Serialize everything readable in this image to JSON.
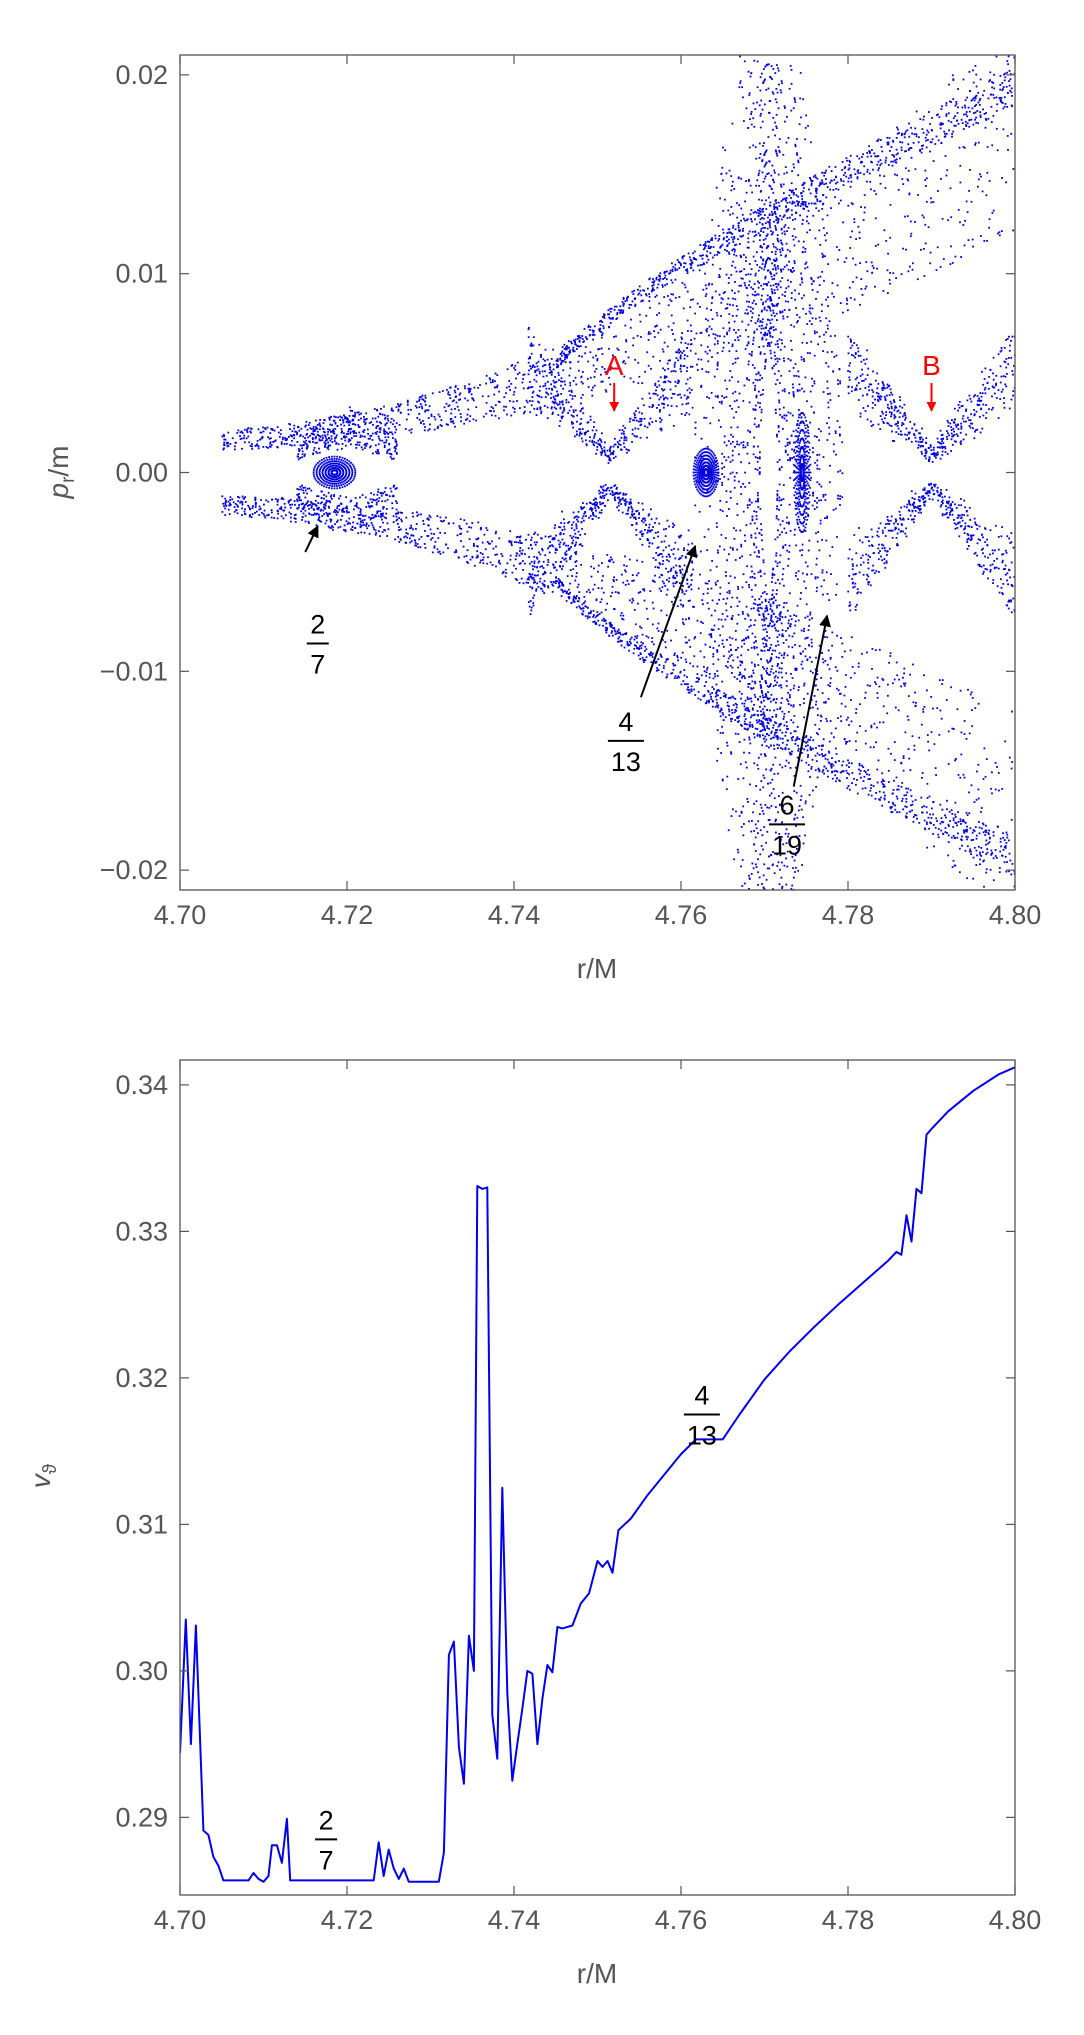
{
  "chart_data": [
    {
      "type": "scatter",
      "title": "",
      "xlabel": "r/M",
      "ylabel": {
        "main": "p",
        "sub": "r",
        "tail": "/m"
      },
      "xlim": [
        4.7,
        4.8
      ],
      "ylim": [
        -0.021,
        0.021
      ],
      "x_ticks": [
        "4.70",
        "4.72",
        "4.74",
        "4.76",
        "4.78",
        "4.80"
      ],
      "y_ticks": [
        "0.02",
        "0.01",
        "0.00",
        "−0.01",
        "−0.02"
      ],
      "grid": false,
      "point_color": "#0000dd",
      "regions": [
        {
          "label": "2/7 island",
          "center": [
            4.7185,
            0.0
          ],
          "half_width": [
            0.0025,
            0.0008
          ]
        },
        {
          "label": "4/13 island",
          "center": [
            4.763,
            0.0
          ],
          "half_width": [
            0.0015,
            0.0012
          ]
        },
        {
          "label": "6/19 island",
          "center": [
            4.7745,
            0.0
          ],
          "half_width": [
            0.001,
            0.003
          ]
        },
        {
          "label": "hyperbolic point A",
          "center": [
            4.7515,
            0.0
          ]
        },
        {
          "label": "hyperbolic point B",
          "center": [
            4.79,
            0.0
          ]
        }
      ],
      "annotations": [
        {
          "kind": "fraction",
          "num": "2",
          "den": "7",
          "text_at": [
            4.7165,
            -0.0086
          ],
          "arrow_from": [
            4.715,
            -0.004
          ],
          "arrow_to": [
            4.7165,
            -0.0027
          ]
        },
        {
          "kind": "fraction",
          "num": "4",
          "den": "13",
          "text_at": [
            4.7534,
            -0.0135
          ],
          "arrow_from": [
            4.7552,
            -0.0113
          ],
          "arrow_to": [
            4.7617,
            -0.0037
          ]
        },
        {
          "kind": "fraction",
          "num": "6",
          "den": "19",
          "text_at": [
            4.7727,
            -0.0177
          ],
          "arrow_from": [
            4.7735,
            -0.0158
          ],
          "arrow_to": [
            4.7775,
            -0.0072
          ]
        },
        {
          "kind": "marker",
          "text": "A",
          "arrow_from": [
            4.752,
            0.0045
          ],
          "arrow_to": [
            4.752,
            0.0031
          ]
        },
        {
          "kind": "marker",
          "text": "B",
          "arrow_from": [
            4.79,
            0.0045
          ],
          "arrow_to": [
            4.79,
            0.0031
          ]
        }
      ],
      "annotation_colors": {
        "fraction": "#000000",
        "marker": "#ff0000"
      }
    },
    {
      "type": "line",
      "title": "",
      "xlabel": "r/M",
      "ylabel": {
        "main": "v",
        "sub": "ϑ",
        "tail": ""
      },
      "xlim": [
        4.7,
        4.8
      ],
      "ylim": [
        0.2847,
        0.3417
      ],
      "x_ticks": [
        "4.70",
        "4.72",
        "4.74",
        "4.76",
        "4.78",
        "4.80"
      ],
      "y_ticks": [
        "0.34",
        "0.33",
        "0.32",
        "0.31",
        "0.30",
        "0.29"
      ],
      "grid": false,
      "series": [
        {
          "color": "#0000ee",
          "points": [
            [
              4.7,
              0.2944
            ],
            [
              4.7007,
              0.3035
            ],
            [
              4.7013,
              0.295
            ],
            [
              4.7019,
              0.3031
            ],
            [
              4.7028,
              0.2891
            ],
            [
              4.7034,
              0.2888
            ],
            [
              4.704,
              0.2873
            ],
            [
              4.7046,
              0.2867
            ],
            [
              4.7052,
              0.2857
            ],
            [
              4.7082,
              0.2857
            ],
            [
              4.7088,
              0.2862
            ],
            [
              4.7094,
              0.2858
            ],
            [
              4.71,
              0.2856
            ],
            [
              4.7106,
              0.286
            ],
            [
              4.711,
              0.2881
            ],
            [
              4.7116,
              0.2881
            ],
            [
              4.7122,
              0.2869
            ],
            [
              4.7128,
              0.2899
            ],
            [
              4.7132,
              0.2857
            ],
            [
              4.72,
              0.2857
            ],
            [
              4.7232,
              0.2857
            ],
            [
              4.7238,
              0.2883
            ],
            [
              4.7244,
              0.286
            ],
            [
              4.725,
              0.2878
            ],
            [
              4.7256,
              0.2865
            ],
            [
              4.7262,
              0.2858
            ],
            [
              4.7268,
              0.2865
            ],
            [
              4.7274,
              0.2856
            ],
            [
              4.731,
              0.2856
            ],
            [
              4.7316,
              0.2876
            ],
            [
              4.7322,
              0.3011
            ],
            [
              4.7328,
              0.302
            ],
            [
              4.7334,
              0.2948
            ],
            [
              4.734,
              0.2923
            ],
            [
              4.7346,
              0.3024
            ],
            [
              4.7352,
              0.3
            ],
            [
              4.7356,
              0.3331
            ],
            [
              4.7362,
              0.3329
            ],
            [
              4.7368,
              0.333
            ],
            [
              4.7374,
              0.297
            ],
            [
              4.738,
              0.294
            ],
            [
              4.7386,
              0.3125
            ],
            [
              4.7392,
              0.2985
            ],
            [
              4.7398,
              0.2925
            ],
            [
              4.7404,
              0.295
            ],
            [
              4.741,
              0.2974
            ],
            [
              4.7416,
              0.3
            ],
            [
              4.7422,
              0.2998
            ],
            [
              4.7428,
              0.295
            ],
            [
              4.7434,
              0.2981
            ],
            [
              4.744,
              0.3004
            ],
            [
              4.7446,
              0.2999
            ],
            [
              4.7452,
              0.303
            ],
            [
              4.7458,
              0.3029
            ],
            [
              4.747,
              0.3031
            ],
            [
              4.748,
              0.3046
            ],
            [
              4.749,
              0.3053
            ],
            [
              4.75,
              0.3075
            ],
            [
              4.7506,
              0.3071
            ],
            [
              4.7512,
              0.3075
            ],
            [
              4.7518,
              0.3067
            ],
            [
              4.7525,
              0.3096
            ],
            [
              4.754,
              0.3104
            ],
            [
              4.756,
              0.312
            ],
            [
              4.758,
              0.3134
            ],
            [
              4.76,
              0.3148
            ],
            [
              4.7618,
              0.3158
            ],
            [
              4.765,
              0.3158
            ],
            [
              4.767,
              0.3175
            ],
            [
              4.77,
              0.3199
            ],
            [
              4.773,
              0.3218
            ],
            [
              4.776,
              0.3235
            ],
            [
              4.779,
              0.3251
            ],
            [
              4.782,
              0.3266
            ],
            [
              4.7848,
              0.328
            ],
            [
              4.7858,
              0.3286
            ],
            [
              4.7864,
              0.3284
            ],
            [
              4.787,
              0.3311
            ],
            [
              4.7876,
              0.3293
            ],
            [
              4.7882,
              0.3329
            ],
            [
              4.7888,
              0.3326
            ],
            [
              4.7894,
              0.3366
            ],
            [
              4.79,
              0.337
            ],
            [
              4.792,
              0.3382
            ],
            [
              4.795,
              0.3396
            ],
            [
              4.798,
              0.3407
            ],
            [
              4.8,
              0.3412
            ]
          ]
        }
      ],
      "annotations": [
        {
          "kind": "fraction",
          "num": "2",
          "den": "7",
          "text_at": [
            4.7175,
            0.2885
          ]
        },
        {
          "kind": "fraction",
          "num": "4",
          "den": "13",
          "text_at": [
            4.7625,
            0.3175
          ]
        }
      ]
    }
  ]
}
